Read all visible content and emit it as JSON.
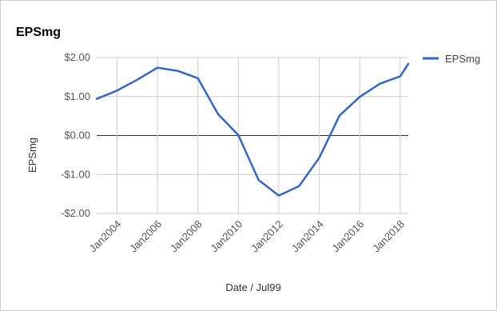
{
  "chart_data": {
    "type": "line",
    "title": "EPSmg",
    "xlabel": "Date / Jul99",
    "ylabel": "EPSmg",
    "y_ticks": [
      {
        "value": 2,
        "label": "$2.00"
      },
      {
        "value": 1,
        "label": "$1.00"
      },
      {
        "value": 0,
        "label": "$0.00"
      },
      {
        "value": -1,
        "label": "-$1.00"
      },
      {
        "value": -2,
        "label": "-$2.00"
      }
    ],
    "x_ticks": [
      {
        "value": 2004,
        "label": "Jan2004"
      },
      {
        "value": 2006,
        "label": "Jan2006"
      },
      {
        "value": 2008,
        "label": "Jan2008"
      },
      {
        "value": 2010,
        "label": "Jan2010"
      },
      {
        "value": 2012,
        "label": "Jan2012"
      },
      {
        "value": 2014,
        "label": "Jan2014"
      },
      {
        "value": 2016,
        "label": "Jan2016"
      },
      {
        "value": 2018,
        "label": "Jan2018"
      }
    ],
    "xlim": [
      2003,
      2018.4
    ],
    "ylim": [
      -2,
      2
    ],
    "grid": true,
    "legend_position": "right",
    "series": [
      {
        "name": "EPSmg",
        "color": "#3366cc",
        "x": [
          2003,
          2004,
          2005,
          2006,
          2007,
          2008,
          2009,
          2010,
          2011,
          2012,
          2013,
          2014,
          2015,
          2016,
          2017,
          2018,
          2018.4
        ],
        "y": [
          0.94,
          1.15,
          1.43,
          1.74,
          1.66,
          1.47,
          0.55,
          0.01,
          -1.14,
          -1.54,
          -1.3,
          -0.57,
          0.51,
          0.99,
          1.33,
          1.52,
          1.84
        ]
      }
    ]
  }
}
